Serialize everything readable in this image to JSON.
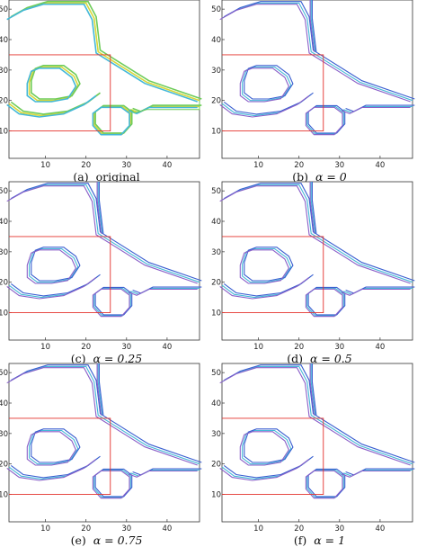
{
  "figure": {
    "panels": [
      {
        "caption_tag": "(a)",
        "caption_text": "original",
        "variant": "original"
      },
      {
        "caption_tag": "(b)",
        "caption_text": "α = 0",
        "variant": "a0"
      },
      {
        "caption_tag": "(c)",
        "caption_text": "α = 0.25",
        "variant": "a25"
      },
      {
        "caption_tag": "(d)",
        "caption_text": "α = 0.5",
        "variant": "a50"
      },
      {
        "caption_tag": "(e)",
        "caption_text": "α = 0.75",
        "variant": "a75"
      },
      {
        "caption_tag": "(f)",
        "caption_text": "α = 1",
        "variant": "a100"
      }
    ],
    "x_ticks": [
      "10",
      "20",
      "30",
      "40"
    ],
    "y_ticks": [
      "10",
      "20",
      "30",
      "40",
      "50"
    ],
    "colors": {
      "region_box": "#e4322b",
      "outline_yellow": "#d8d83a",
      "outline_green": "#6ecc5a",
      "outline_cyan": "#44b8d8",
      "outline_blue": "#3a5fd0",
      "outline_purple": "#8a5fc8",
      "axis": "#333333"
    }
  }
}
